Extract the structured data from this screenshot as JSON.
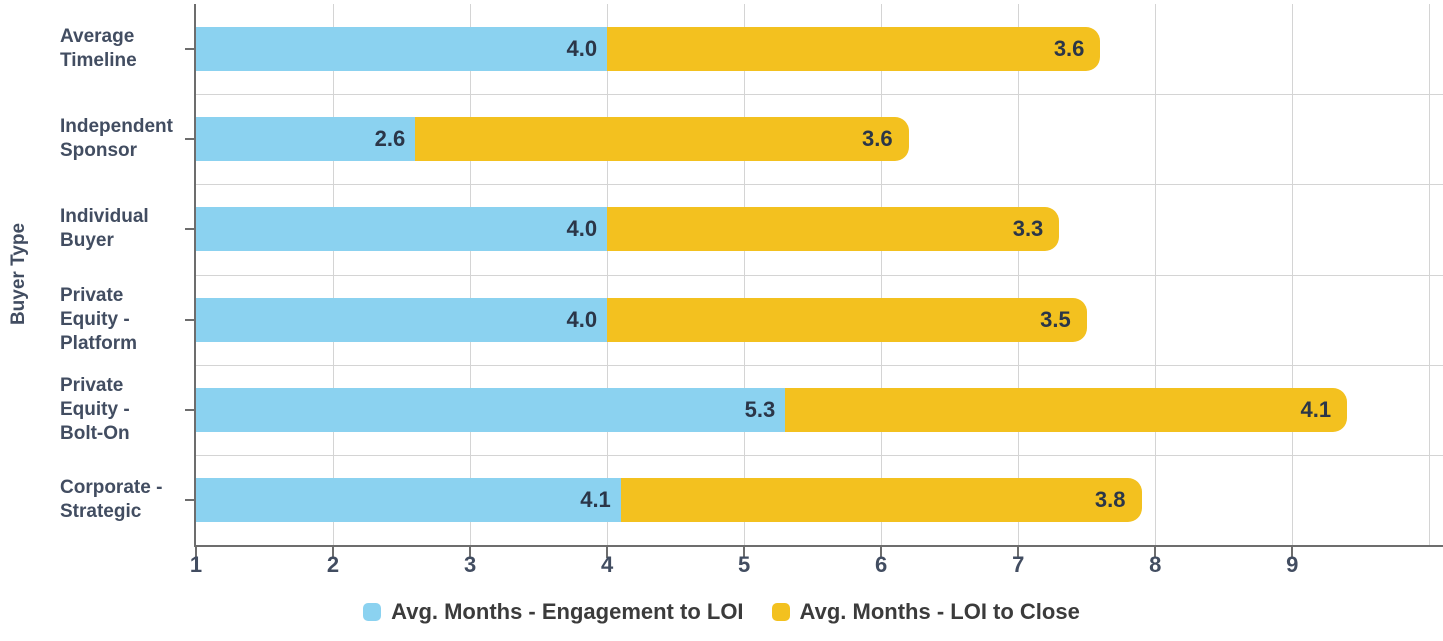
{
  "chart_data": {
    "type": "bar",
    "orientation": "horizontal-stacked",
    "title": "",
    "xlabel": "",
    "ylabel": "Buyer Type",
    "categories": [
      "Average Timeline",
      "Independent Sponsor",
      "Individual Buyer",
      "Private Equity - Platform",
      "Private Equity - Bolt-On",
      "Corporate - Strategic"
    ],
    "category_label_lines": [
      [
        "Average",
        "Timeline"
      ],
      [
        "Independent",
        "Sponsor"
      ],
      [
        "Individual",
        "Buyer"
      ],
      [
        "Private",
        "Equity -",
        "Platform"
      ],
      [
        "Private",
        "Equity -",
        "Bolt-On"
      ],
      [
        "Corporate -",
        "Strategic"
      ]
    ],
    "series": [
      {
        "name": "Avg. Months - Engagement to LOI",
        "color": "#8BD2F0",
        "values": [
          4.0,
          2.6,
          4.0,
          4.0,
          5.3,
          4.1
        ]
      },
      {
        "name": "Avg. Months - LOI to Close",
        "color": "#F3C11F",
        "values": [
          3.6,
          3.6,
          3.3,
          3.5,
          4.1,
          3.8
        ]
      }
    ],
    "value_label_decimals": 1,
    "bars_start_at_axis_min": true,
    "x_axis": {
      "min": 1,
      "max": 10.1,
      "tick_labels": [
        1,
        2,
        3,
        4,
        5,
        6,
        7,
        8,
        9
      ],
      "gridline_values": [
        2,
        3,
        4,
        5,
        6,
        7,
        8,
        9,
        10
      ]
    },
    "grid": "on",
    "legend_position": "bottom-center"
  },
  "colors": {
    "engagement_blue": "#8BD2F0",
    "close_yellow": "#F3C11F",
    "gridline": "#D4D4D4",
    "axis_line": "#6D6D6D",
    "axis_text": "#424D61",
    "value_text": "#2B3648",
    "legend_text": "#3B3B3B"
  }
}
